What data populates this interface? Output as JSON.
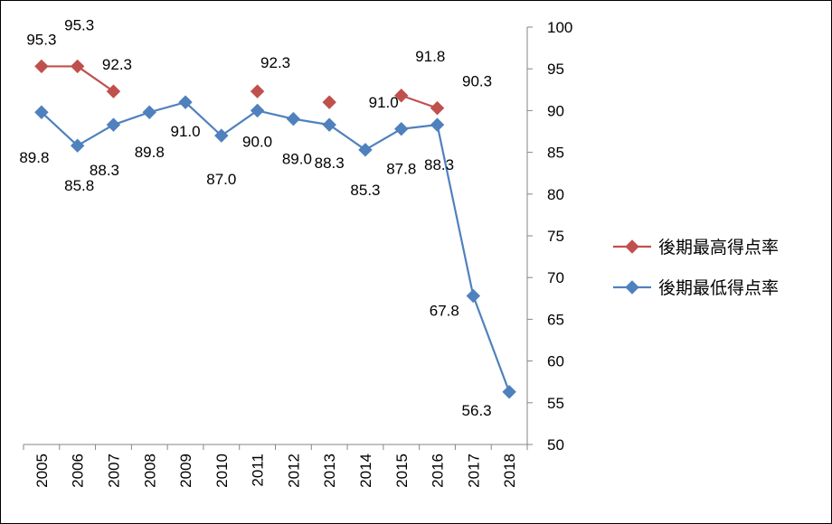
{
  "chart_data": {
    "type": "line",
    "categories": [
      "2005",
      "2006",
      "2007",
      "2008",
      "2009",
      "2010",
      "2011",
      "2012",
      "2013",
      "2014",
      "2015",
      "2016",
      "2017",
      "2018"
    ],
    "series": [
      {
        "name": "後期最高得点率",
        "color": "#C0504D",
        "values": [
          95.3,
          95.3,
          92.3,
          null,
          null,
          null,
          92.3,
          null,
          91.0,
          null,
          91.8,
          90.3,
          null,
          null
        ]
      },
      {
        "name": "後期最低得点率",
        "color": "#4F81BD",
        "values": [
          89.8,
          85.8,
          88.3,
          89.8,
          91.0,
          87.0,
          90.0,
          89.0,
          88.3,
          85.3,
          87.8,
          88.3,
          67.8,
          56.3
        ]
      }
    ],
    "y_axis": {
      "position": "right",
      "min": 50,
      "max": 100,
      "step": 5
    },
    "ytick_labels": [
      "50",
      "55",
      "60",
      "65",
      "70",
      "75",
      "80",
      "85",
      "90",
      "95",
      "100"
    ],
    "grid": false,
    "legend_position": "right"
  }
}
